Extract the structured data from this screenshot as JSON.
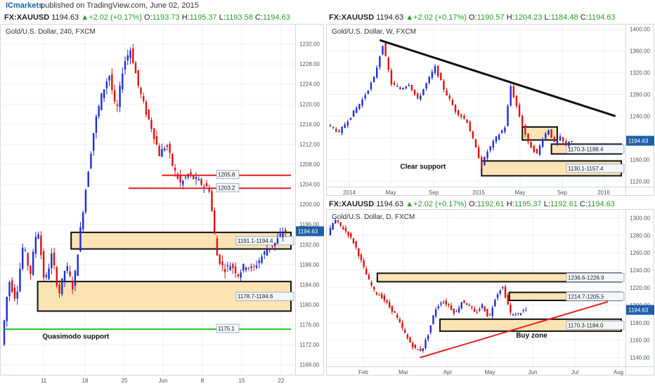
{
  "header": {
    "brand": "ICmarkets",
    "published": "published on TradingView.com, June 02, 2015"
  },
  "colors": {
    "bull": "#1f2bd6",
    "bear": "#e01010",
    "zone_fill": "#fbe3b4",
    "zone_border": "#111111",
    "red_line": "#e81c1c",
    "green_line": "#22cc22",
    "trend_line": "#111111",
    "price_label_bg": "#1f5fa8"
  },
  "quotes": {
    "q1": {
      "symbol": "FX:XAUUSD",
      "price": "1194.63",
      "change": "+2.02 (+0.17%)",
      "o_label": "O:",
      "o": "1193.73",
      "h_label": "H:",
      "h": "1195.37",
      "l_label": "L:",
      "l": "1193.58",
      "c_label": "C:",
      "c": "1194.63"
    },
    "q2": {
      "symbol": "FX:XAUUSD",
      "price": "1194.63",
      "change": "+2.02 (+0.17%)",
      "o_label": "O:",
      "o": "1190.57",
      "h_label": "H:",
      "h": "1204.23",
      "l_label": "L:",
      "l": "1184.48",
      "c_label": "C:",
      "c": "1194.63"
    },
    "q3": {
      "symbol": "FX:XAUUSD",
      "price": "1194.63",
      "change": "+2.02 (+0.17%)",
      "o_label": "O:",
      "o": "1192.61",
      "h_label": "H:",
      "h": "1195.37",
      "l_label": "L:",
      "l": "1192.61",
      "c_label": "C:",
      "c": "1194.63"
    }
  },
  "chart_data": [
    {
      "type": "candlestick",
      "title": "Gold/U.S. Dollar, 240, FXCM",
      "ylim": [
        1166,
        1236
      ],
      "y_ticks": [
        "1168.00",
        "1172.00",
        "1176.00",
        "1180.00",
        "1184.00",
        "1188.00",
        "1192.00",
        "1196.00",
        "1200.00",
        "1204.00",
        "1208.00",
        "1212.00",
        "1216.00",
        "1220.00",
        "1224.00",
        "1228.00",
        "1232.00"
      ],
      "x_ticks": [
        "11",
        "18",
        "25",
        "Jun",
        "8",
        "15",
        "22"
      ],
      "last_price": "1194.63",
      "path": [
        [
          0,
          1172
        ],
        [
          3,
          1185
        ],
        [
          6,
          1181
        ],
        [
          9,
          1192
        ],
        [
          12,
          1186
        ],
        [
          15,
          1196
        ],
        [
          18,
          1184
        ],
        [
          21,
          1190
        ],
        [
          24,
          1182
        ],
        [
          27,
          1188
        ],
        [
          30,
          1183
        ],
        [
          33,
          1195
        ],
        [
          36,
          1206
        ],
        [
          39,
          1216
        ],
        [
          42,
          1222
        ],
        [
          45,
          1226
        ],
        [
          48,
          1218
        ],
        [
          51,
          1228
        ],
        [
          54,
          1231
        ],
        [
          57,
          1224
        ],
        [
          60,
          1219
        ],
        [
          63,
          1215
        ],
        [
          66,
          1210
        ],
        [
          69,
          1212
        ],
        [
          72,
          1207
        ],
        [
          75,
          1204
        ],
        [
          78,
          1206
        ],
        [
          81,
          1205
        ],
        [
          84,
          1204
        ],
        [
          87,
          1203
        ],
        [
          90,
          1190
        ],
        [
          93,
          1187
        ],
        [
          96,
          1188
        ],
        [
          99,
          1186
        ],
        [
          102,
          1188
        ],
        [
          105,
          1187
        ],
        [
          108,
          1189
        ],
        [
          111,
          1191
        ],
        [
          114,
          1192
        ],
        [
          117,
          1194
        ],
        [
          118,
          1194.63
        ]
      ],
      "zones": [
        {
          "from": 28,
          "to": 120,
          "low": 1191.1,
          "high": 1194.4,
          "label": "1191.1-1194.4"
        },
        {
          "from": 14,
          "to": 120,
          "low": 1178.7,
          "high": 1184.6,
          "label": "1178.7-1184.6"
        }
      ],
      "lines": [
        {
          "kind": "red",
          "from": 66,
          "to": 120,
          "value": 1205.8,
          "label": "1205.8"
        },
        {
          "kind": "red",
          "from": 52,
          "to": 120,
          "value": 1203.2,
          "label": "1203.2"
        },
        {
          "kind": "green",
          "from": 0,
          "to": 120,
          "value": 1175.1,
          "label": "1175.1"
        }
      ],
      "annotations": [
        {
          "text": "Quasimodo support",
          "x": 16,
          "y": 1173.2
        }
      ]
    },
    {
      "type": "candlestick",
      "title": "Gold/U.S. Dollar, W, FXCM",
      "ylim": [
        1110,
        1410
      ],
      "y_ticks": [
        "1120.00",
        "1160.00",
        "1200.00",
        "1240.00",
        "1280.00",
        "1320.00",
        "1360.00",
        "1400.00"
      ],
      "x_ticks": [
        "2014",
        "May",
        "Sep",
        "2015",
        "May",
        "Sep",
        "2016"
      ],
      "last_price": "1194.63",
      "path": [
        [
          0,
          1225
        ],
        [
          4,
          1210
        ],
        [
          8,
          1240
        ],
        [
          12,
          1270
        ],
        [
          16,
          1310
        ],
        [
          19,
          1372
        ],
        [
          22,
          1300
        ],
        [
          25,
          1290
        ],
        [
          28,
          1300
        ],
        [
          31,
          1270
        ],
        [
          34,
          1300
        ],
        [
          37,
          1330
        ],
        [
          40,
          1290
        ],
        [
          44,
          1250
        ],
        [
          48,
          1230
        ],
        [
          51,
          1180
        ],
        [
          53,
          1150
        ],
        [
          55,
          1175
        ],
        [
          58,
          1200
        ],
        [
          61,
          1220
        ],
        [
          63,
          1295
        ],
        [
          66,
          1240
        ],
        [
          69,
          1190
        ],
        [
          72,
          1170
        ],
        [
          74,
          1200
        ],
        [
          76,
          1215
        ],
        [
          78,
          1190
        ],
        [
          80,
          1200
        ],
        [
          82,
          1185
        ],
        [
          83,
          1194.63
        ]
      ],
      "zones": [
        {
          "from": 66,
          "to": 78,
          "low": 1196,
          "high": 1220,
          "label": ""
        },
        {
          "from": 76,
          "to": 100,
          "low": 1170.3,
          "high": 1188.4,
          "label": "1170.3-1188.4"
        },
        {
          "from": 52,
          "to": 100,
          "low": 1130.1,
          "high": 1157.4,
          "label": "1130.1-1157.4"
        }
      ],
      "lines": [
        {
          "kind": "trend",
          "x1": 17,
          "y1": 1380,
          "x2": 98,
          "y2": 1240
        }
      ],
      "annotations": [
        {
          "text": "Clear support",
          "x": 24,
          "y": 1143
        }
      ]
    },
    {
      "type": "candlestick",
      "title": "Gold/U.S. Dollar, D, FXCM",
      "ylim": [
        1130,
        1310
      ],
      "y_ticks": [
        "1140.00",
        "1160.00",
        "1180.00",
        "1200.00",
        "1220.00",
        "1240.00",
        "1260.00",
        "1280.00",
        "1300.00"
      ],
      "x_ticks": [
        "Feb",
        "Mar",
        "Apr",
        "May",
        "Jun",
        "Jul",
        "Aug"
      ],
      "last_price": "1194.63",
      "path": [
        [
          0,
          1280
        ],
        [
          3,
          1298
        ],
        [
          6,
          1290
        ],
        [
          9,
          1282
        ],
        [
          12,
          1270
        ],
        [
          15,
          1250
        ],
        [
          18,
          1230
        ],
        [
          21,
          1215
        ],
        [
          24,
          1210
        ],
        [
          27,
          1200
        ],
        [
          30,
          1190
        ],
        [
          33,
          1175
        ],
        [
          36,
          1160
        ],
        [
          39,
          1150
        ],
        [
          42,
          1148
        ],
        [
          45,
          1168
        ],
        [
          48,
          1195
        ],
        [
          51,
          1205
        ],
        [
          54,
          1200
        ],
        [
          57,
          1190
        ],
        [
          60,
          1205
        ],
        [
          63,
          1200
        ],
        [
          66,
          1190
        ],
        [
          69,
          1200
        ],
        [
          72,
          1185
        ],
        [
          75,
          1210
        ],
        [
          78,
          1222
        ],
        [
          80,
          1205
        ],
        [
          82,
          1188
        ],
        [
          85,
          1190
        ],
        [
          88,
          1194.63
        ]
      ],
      "zones": [
        {
          "from": 21,
          "to": 130,
          "low": 1226.9,
          "high": 1236.6,
          "label": "1236.6-1226.9"
        },
        {
          "from": 80,
          "to": 130,
          "low": 1205.5,
          "high": 1214.7,
          "label": "1214.7-1205.5"
        },
        {
          "from": 49,
          "to": 130,
          "low": 1170.3,
          "high": 1184.0,
          "label": "1170.3-1184.0"
        }
      ],
      "lines": [
        {
          "kind": "red_trend",
          "x1": 40,
          "y1": 1140,
          "x2": 124,
          "y2": 1204
        }
      ],
      "annotations": [
        {
          "text": "Buy zone",
          "x": 83,
          "y": 1163
        }
      ]
    }
  ]
}
